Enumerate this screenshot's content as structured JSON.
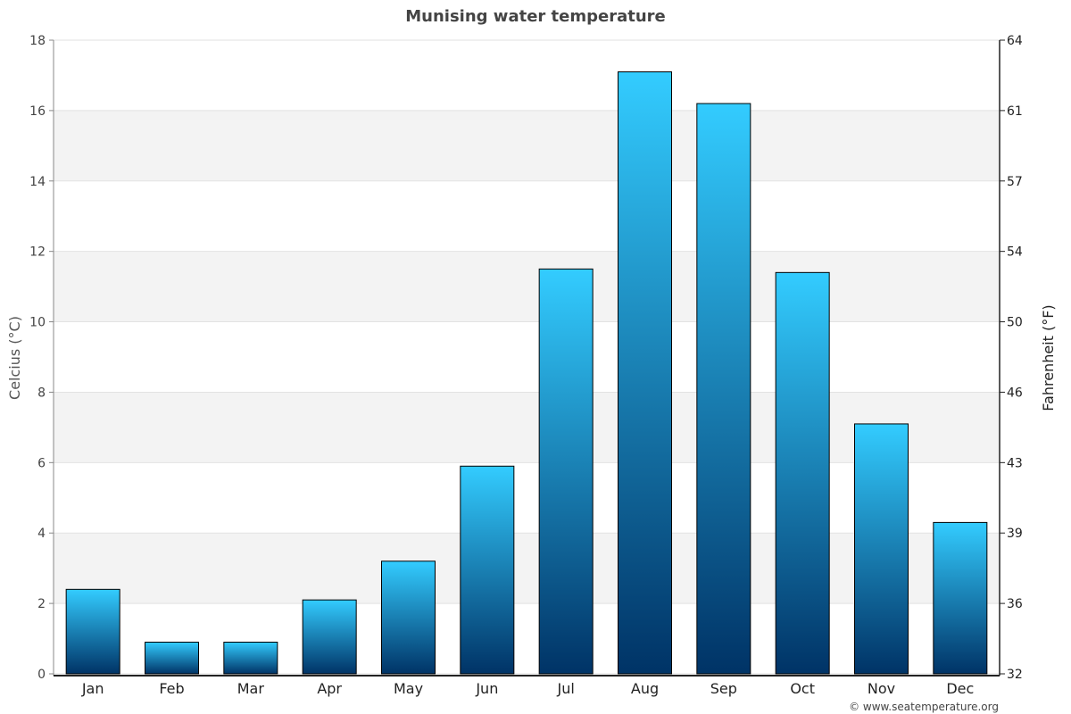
{
  "chart_data": {
    "type": "bar",
    "title": "Munising water temperature",
    "categories": [
      "Jan",
      "Feb",
      "Mar",
      "Apr",
      "May",
      "Jun",
      "Jul",
      "Aug",
      "Sep",
      "Oct",
      "Nov",
      "Dec"
    ],
    "values": [
      2.4,
      0.9,
      0.9,
      2.1,
      3.2,
      5.9,
      11.5,
      17.1,
      16.2,
      11.4,
      7.1,
      4.3
    ],
    "ylabel": "Celcius (°C)",
    "y2label": "Fahrenheit (°F)",
    "ylim": [
      0,
      18
    ],
    "yticks": [
      "0",
      "2",
      "4",
      "6",
      "8",
      "10",
      "12",
      "14",
      "16",
      "18"
    ],
    "y2ticks": [
      "32",
      "36",
      "39",
      "43",
      "46",
      "50",
      "54",
      "57",
      "61",
      "64"
    ],
    "grid": true,
    "colors": {
      "bar_top": "#33ccff",
      "bar_bottom": "#003366",
      "band": "#f3f3f3"
    }
  },
  "credit": "© www.seatemperature.org"
}
